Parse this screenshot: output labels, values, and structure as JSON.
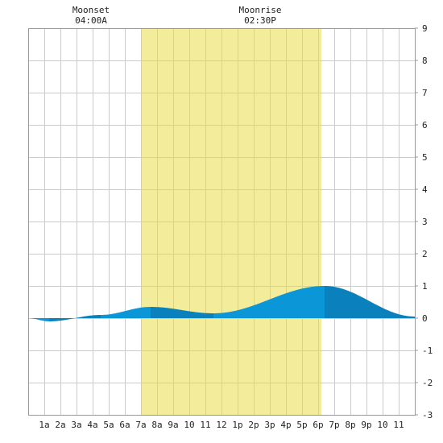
{
  "chart_data": {
    "type": "area",
    "moon_events": [
      {
        "label": "Moonset",
        "time": "04:00A",
        "hour": 4.0
      },
      {
        "label": "Moonrise",
        "time": "02:30P",
        "hour": 14.5
      }
    ],
    "daylight": {
      "start_hour": 7.0,
      "end_hour": 18.2,
      "color": "#f3ec9b"
    },
    "x_ticks": [
      "1a",
      "2a",
      "3a",
      "4a",
      "5a",
      "6a",
      "7a",
      "8a",
      "9a",
      "10",
      "11",
      "12",
      "1p",
      "2p",
      "3p",
      "4p",
      "5p",
      "6p",
      "7p",
      "8p",
      "9p",
      "10",
      "11"
    ],
    "xlim": [
      0,
      24
    ],
    "ylim": [
      -3,
      9
    ],
    "y_ticks": [
      -3,
      -2,
      -1,
      0,
      1,
      2,
      3,
      4,
      5,
      6,
      7,
      8,
      9
    ],
    "grid": true,
    "tide_height": {
      "x": [
        0,
        1.3,
        4.5,
        7.6,
        11.5,
        18.4,
        24
      ],
      "y": [
        0.0,
        -0.1,
        0.1,
        0.35,
        0.15,
        1.0,
        0.05
      ]
    },
    "colors": {
      "fill_light": "#0a96d7",
      "fill_dark": "#0a80bd",
      "grid": "#cccccc",
      "axis": "#999999"
    }
  }
}
